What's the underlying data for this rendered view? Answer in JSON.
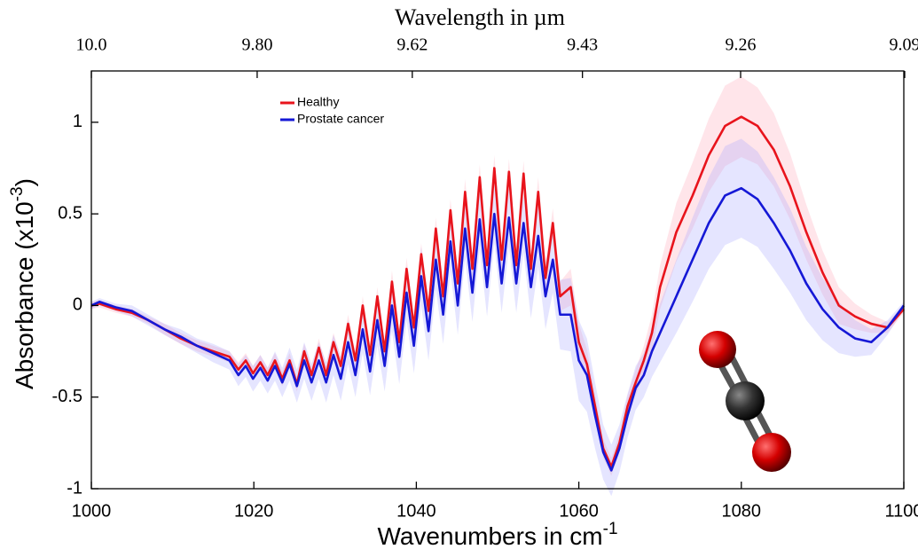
{
  "chart_data": {
    "type": "line",
    "title": "Wavelength in  µm",
    "x_label": "Wavenumbers in cm",
    "x_label_sup": "-1",
    "y_label": "Absorbance (x10",
    "y_label_sup": "-3",
    "y_label_end": ")",
    "xlim": [
      1000,
      1100
    ],
    "ylim": [
      -1,
      1.28
    ],
    "xticks": [
      1000,
      1020,
      1040,
      1060,
      1080,
      1100
    ],
    "yticks": [
      1,
      0.5,
      0,
      -0.5,
      -1
    ],
    "x2_scale": "reciprocal",
    "x2ticks": [
      {
        "value": 10,
        "label": "10.0"
      },
      {
        "value": 9.8,
        "label": "9.80"
      },
      9.62,
      9.43,
      9.26,
      9.09
    ],
    "legend": "upper left",
    "x": [
      1000,
      1001,
      1003,
      1005,
      1007,
      1009,
      1011,
      1013,
      1015,
      1017,
      1018.1,
      1019,
      1019.9,
      1020.8,
      1021.7,
      1022.6,
      1023.5,
      1024.4,
      1025.3,
      1026.2,
      1027.1,
      1028,
      1028.9,
      1029.8,
      1030.7,
      1031.6,
      1032.5,
      1033.4,
      1034.3,
      1035.2,
      1036.1,
      1037,
      1037.9,
      1038.8,
      1039.7,
      1040.6,
      1041.5,
      1042.4,
      1043.3,
      1044.2,
      1045.1,
      1046,
      1046.9,
      1047.8,
      1048.7,
      1049.6,
      1050.5,
      1051.4,
      1052.3,
      1053.2,
      1054.1,
      1055,
      1055.9,
      1056.8,
      1057.7,
      1059,
      1060,
      1061,
      1062,
      1063,
      1064,
      1065,
      1066,
      1067,
      1068,
      1069,
      1070,
      1071,
      1072,
      1074,
      1076,
      1078,
      1080,
      1082,
      1084,
      1086,
      1088,
      1090,
      1092,
      1094,
      1096,
      1098,
      1100
    ],
    "series": [
      {
        "name": "Healthy",
        "color": "#e8141c",
        "band_color": "rgba(255,170,185,0.3)",
        "values": [
          0,
          0.01,
          -0.02,
          -0.04,
          -0.08,
          -0.13,
          -0.18,
          -0.22,
          -0.25,
          -0.28,
          -0.35,
          -0.3,
          -0.37,
          -0.31,
          -0.38,
          -0.3,
          -0.4,
          -0.3,
          -0.43,
          -0.25,
          -0.38,
          -0.23,
          -0.38,
          -0.2,
          -0.33,
          -0.1,
          -0.3,
          0,
          -0.27,
          0.05,
          -0.25,
          0.13,
          -0.2,
          0.2,
          -0.12,
          0.28,
          -0.03,
          0.42,
          0.05,
          0.52,
          0.12,
          0.62,
          0.2,
          0.7,
          0.22,
          0.75,
          0.25,
          0.73,
          0.22,
          0.72,
          0.2,
          0.62,
          0.15,
          0.45,
          0.05,
          0.1,
          -0.2,
          -0.32,
          -0.55,
          -0.78,
          -0.88,
          -0.75,
          -0.55,
          -0.42,
          -0.3,
          -0.15,
          0.1,
          0.25,
          0.4,
          0.6,
          0.82,
          0.98,
          1.03,
          0.98,
          0.85,
          0.65,
          0.4,
          0.18,
          0,
          -0.06,
          -0.1,
          -0.12,
          -0.02
        ],
        "std": [
          0.02,
          0.02,
          0.02,
          0.02,
          0.02,
          0.03,
          0.03,
          0.03,
          0.03,
          0.03,
          0.04,
          0.04,
          0.04,
          0.04,
          0.04,
          0.04,
          0.04,
          0.04,
          0.04,
          0.04,
          0.04,
          0.05,
          0.05,
          0.05,
          0.05,
          0.05,
          0.05,
          0.05,
          0.05,
          0.05,
          0.05,
          0.06,
          0.06,
          0.06,
          0.06,
          0.06,
          0.06,
          0.06,
          0.06,
          0.06,
          0.06,
          0.07,
          0.07,
          0.07,
          0.07,
          0.07,
          0.07,
          0.07,
          0.07,
          0.07,
          0.07,
          0.08,
          0.08,
          0.08,
          0.08,
          0.1,
          0.1,
          0.08,
          0.06,
          0.05,
          0.05,
          0.05,
          0.06,
          0.07,
          0.08,
          0.1,
          0.12,
          0.14,
          0.16,
          0.18,
          0.2,
          0.22,
          0.22,
          0.21,
          0.2,
          0.18,
          0.15,
          0.12,
          0.1,
          0.07,
          0.05,
          0.03,
          0.02
        ]
      },
      {
        "name": "Prostate cancer",
        "color": "#1518d6",
        "band_color": "rgba(160,160,255,0.28)",
        "values": [
          0,
          0.02,
          -0.01,
          -0.03,
          -0.08,
          -0.13,
          -0.17,
          -0.22,
          -0.26,
          -0.3,
          -0.38,
          -0.33,
          -0.4,
          -0.34,
          -0.41,
          -0.33,
          -0.42,
          -0.32,
          -0.44,
          -0.3,
          -0.42,
          -0.3,
          -0.42,
          -0.27,
          -0.4,
          -0.2,
          -0.38,
          -0.13,
          -0.36,
          -0.08,
          -0.33,
          0,
          -0.28,
          0.07,
          -0.22,
          0.16,
          -0.14,
          0.25,
          -0.05,
          0.35,
          0,
          0.42,
          0.07,
          0.47,
          0.1,
          0.5,
          0.12,
          0.48,
          0.12,
          0.45,
          0.1,
          0.38,
          0.05,
          0.25,
          -0.05,
          -0.05,
          -0.3,
          -0.38,
          -0.6,
          -0.8,
          -0.9,
          -0.78,
          -0.6,
          -0.45,
          -0.38,
          -0.25,
          -0.15,
          -0.05,
          0.05,
          0.25,
          0.45,
          0.6,
          0.64,
          0.58,
          0.45,
          0.3,
          0.12,
          -0.02,
          -0.12,
          -0.18,
          -0.2,
          -0.12,
          0
        ],
        "std": [
          0.02,
          0.02,
          0.02,
          0.03,
          0.03,
          0.03,
          0.04,
          0.04,
          0.05,
          0.05,
          0.06,
          0.06,
          0.07,
          0.07,
          0.07,
          0.08,
          0.08,
          0.09,
          0.09,
          0.1,
          0.1,
          0.1,
          0.11,
          0.11,
          0.12,
          0.12,
          0.12,
          0.13,
          0.13,
          0.14,
          0.14,
          0.14,
          0.15,
          0.15,
          0.15,
          0.16,
          0.16,
          0.16,
          0.16,
          0.16,
          0.16,
          0.16,
          0.16,
          0.16,
          0.16,
          0.16,
          0.16,
          0.16,
          0.16,
          0.16,
          0.17,
          0.17,
          0.18,
          0.18,
          0.19,
          0.2,
          0.22,
          0.2,
          0.18,
          0.15,
          0.14,
          0.13,
          0.12,
          0.12,
          0.12,
          0.14,
          0.16,
          0.18,
          0.2,
          0.23,
          0.25,
          0.27,
          0.27,
          0.26,
          0.25,
          0.23,
          0.2,
          0.17,
          0.14,
          0.1,
          0.07,
          0.04,
          0.02
        ]
      }
    ]
  }
}
